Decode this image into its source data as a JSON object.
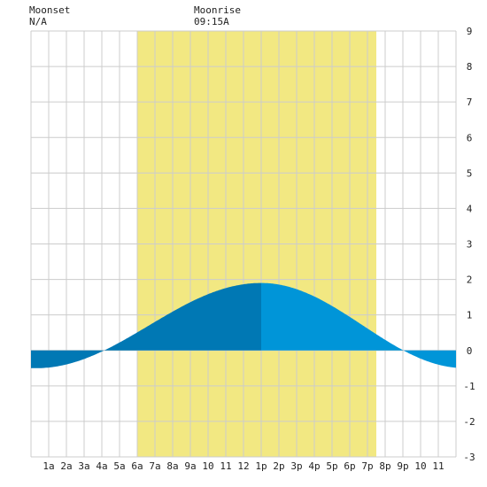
{
  "header": {
    "moonset": {
      "title": "Moonset",
      "value": "N/A"
    },
    "moonrise": {
      "title": "Moonrise",
      "value": "09:15A"
    }
  },
  "colors": {
    "daylight": "#f2e882",
    "tide_dark": "#0078b4",
    "tide_light": "#0095d8",
    "grid": "#cccccc",
    "background": "#ffffff"
  },
  "chart_data": {
    "type": "area",
    "title": "",
    "xlabel": "",
    "ylabel": "",
    "xlim": [
      0,
      24
    ],
    "ylim": [
      -3,
      9
    ],
    "y_ticks": [
      -3,
      -2,
      -1,
      0,
      1,
      2,
      3,
      4,
      5,
      6,
      7,
      8,
      9
    ],
    "y_axis_side": "right",
    "x_tick_labels": [
      "1a",
      "2a",
      "3a",
      "4a",
      "5a",
      "6a",
      "7a",
      "8a",
      "9a",
      "10",
      "11",
      "12",
      "1p",
      "2p",
      "3p",
      "4p",
      "5p",
      "6p",
      "7p",
      "8p",
      "9p",
      "10",
      "11"
    ],
    "grid": true,
    "daylight_hours": [
      6.0,
      19.5
    ],
    "current_time_hour": 13.0,
    "tide_extremes": [
      {
        "hour": 0.3,
        "height": -0.5,
        "type": "low"
      },
      {
        "hour": 13.0,
        "height": 1.9,
        "type": "high"
      },
      {
        "hour": 24.5,
        "height": -0.5,
        "type": "low"
      }
    ]
  }
}
